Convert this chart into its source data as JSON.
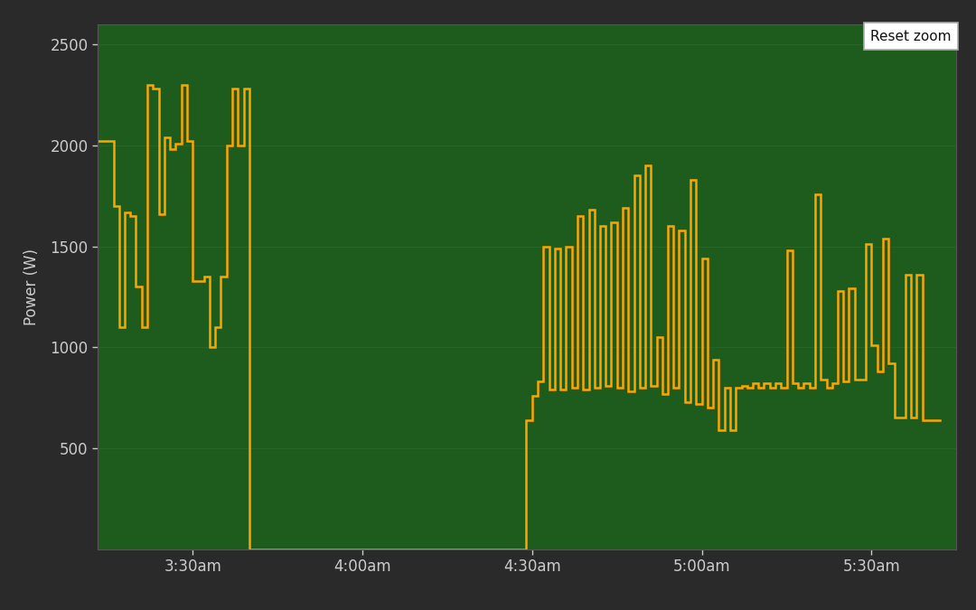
{
  "bg_color": "#2a2a2a",
  "plot_bg_color": "#1e5c1e",
  "line_color": "#FFA500",
  "line_width": 1.8,
  "ylabel": "Power (W)",
  "ylim": [
    0,
    2600
  ],
  "yticks": [
    500,
    1000,
    1500,
    2000,
    2500
  ],
  "grid_color": "#266626",
  "tick_color": "#cccccc",
  "reset_zoom_text": "Reset zoom",
  "xlim": [
    3.22,
    5.75
  ],
  "xtick_positions": [
    3.5,
    4.0,
    4.5,
    5.0,
    5.5
  ],
  "xtick_labels": [
    "3:30am",
    "4:00am",
    "4:30am",
    "5:00am",
    "5:30am"
  ],
  "time_series": [
    [
      3.22,
      2020
    ],
    [
      3.267,
      2020
    ],
    [
      3.267,
      1700
    ],
    [
      3.283,
      1700
    ],
    [
      3.283,
      1100
    ],
    [
      3.3,
      1100
    ],
    [
      3.3,
      1670
    ],
    [
      3.317,
      1670
    ],
    [
      3.317,
      1650
    ],
    [
      3.333,
      1650
    ],
    [
      3.333,
      1300
    ],
    [
      3.35,
      1300
    ],
    [
      3.35,
      1100
    ],
    [
      3.367,
      1100
    ],
    [
      3.367,
      2300
    ],
    [
      3.383,
      2300
    ],
    [
      3.383,
      2280
    ],
    [
      3.4,
      2280
    ],
    [
      3.4,
      1660
    ],
    [
      3.417,
      1660
    ],
    [
      3.417,
      2040
    ],
    [
      3.433,
      2040
    ],
    [
      3.433,
      1980
    ],
    [
      3.45,
      1980
    ],
    [
      3.45,
      2010
    ],
    [
      3.467,
      2010
    ],
    [
      3.467,
      2300
    ],
    [
      3.483,
      2300
    ],
    [
      3.483,
      2020
    ],
    [
      3.5,
      2020
    ],
    [
      3.5,
      1330
    ],
    [
      3.517,
      1330
    ],
    [
      3.517,
      1330
    ],
    [
      3.533,
      1330
    ],
    [
      3.533,
      1350
    ],
    [
      3.55,
      1350
    ],
    [
      3.55,
      1000
    ],
    [
      3.567,
      1000
    ],
    [
      3.567,
      1100
    ],
    [
      3.583,
      1100
    ],
    [
      3.583,
      1350
    ],
    [
      3.6,
      1350
    ],
    [
      3.6,
      2000
    ],
    [
      3.617,
      2000
    ],
    [
      3.617,
      2280
    ],
    [
      3.633,
      2280
    ],
    [
      3.633,
      2000
    ],
    [
      3.65,
      2000
    ],
    [
      3.65,
      2280
    ],
    [
      3.667,
      2280
    ],
    [
      3.667,
      0
    ],
    [
      4.483,
      0
    ],
    [
      4.483,
      640
    ],
    [
      4.5,
      640
    ],
    [
      4.5,
      760
    ],
    [
      4.517,
      760
    ],
    [
      4.517,
      830
    ],
    [
      4.533,
      830
    ],
    [
      4.533,
      1500
    ],
    [
      4.55,
      1500
    ],
    [
      4.55,
      790
    ],
    [
      4.567,
      790
    ],
    [
      4.567,
      1490
    ],
    [
      4.583,
      1490
    ],
    [
      4.583,
      790
    ],
    [
      4.6,
      790
    ],
    [
      4.6,
      1500
    ],
    [
      4.617,
      1500
    ],
    [
      4.617,
      800
    ],
    [
      4.633,
      800
    ],
    [
      4.633,
      1650
    ],
    [
      4.65,
      1650
    ],
    [
      4.65,
      790
    ],
    [
      4.667,
      790
    ],
    [
      4.667,
      1680
    ],
    [
      4.683,
      1680
    ],
    [
      4.683,
      800
    ],
    [
      4.7,
      800
    ],
    [
      4.7,
      1600
    ],
    [
      4.717,
      1600
    ],
    [
      4.717,
      810
    ],
    [
      4.733,
      810
    ],
    [
      4.733,
      1620
    ],
    [
      4.75,
      1620
    ],
    [
      4.75,
      800
    ],
    [
      4.767,
      800
    ],
    [
      4.767,
      1690
    ],
    [
      4.783,
      1690
    ],
    [
      4.783,
      780
    ],
    [
      4.8,
      780
    ],
    [
      4.8,
      1850
    ],
    [
      4.817,
      1850
    ],
    [
      4.817,
      800
    ],
    [
      4.833,
      800
    ],
    [
      4.833,
      1900
    ],
    [
      4.85,
      1900
    ],
    [
      4.85,
      810
    ],
    [
      4.867,
      810
    ],
    [
      4.867,
      1050
    ],
    [
      4.883,
      1050
    ],
    [
      4.883,
      770
    ],
    [
      4.9,
      770
    ],
    [
      4.9,
      1600
    ],
    [
      4.917,
      1600
    ],
    [
      4.917,
      800
    ],
    [
      4.933,
      800
    ],
    [
      4.933,
      1580
    ],
    [
      4.95,
      1580
    ],
    [
      4.95,
      730
    ],
    [
      4.967,
      730
    ],
    [
      4.967,
      1830
    ],
    [
      4.983,
      1830
    ],
    [
      4.983,
      720
    ],
    [
      5.0,
      720
    ],
    [
      5.0,
      1440
    ],
    [
      5.017,
      1440
    ],
    [
      5.017,
      700
    ],
    [
      5.033,
      700
    ],
    [
      5.033,
      940
    ],
    [
      5.05,
      940
    ],
    [
      5.05,
      590
    ],
    [
      5.067,
      590
    ],
    [
      5.067,
      800
    ],
    [
      5.083,
      800
    ],
    [
      5.083,
      590
    ],
    [
      5.1,
      590
    ],
    [
      5.1,
      800
    ],
    [
      5.117,
      800
    ],
    [
      5.117,
      810
    ],
    [
      5.133,
      810
    ],
    [
      5.133,
      800
    ],
    [
      5.15,
      800
    ],
    [
      5.15,
      820
    ],
    [
      5.167,
      820
    ],
    [
      5.167,
      800
    ],
    [
      5.183,
      800
    ],
    [
      5.183,
      820
    ],
    [
      5.2,
      820
    ],
    [
      5.2,
      800
    ],
    [
      5.217,
      800
    ],
    [
      5.217,
      820
    ],
    [
      5.233,
      820
    ],
    [
      5.233,
      800
    ],
    [
      5.25,
      800
    ],
    [
      5.25,
      1480
    ],
    [
      5.267,
      1480
    ],
    [
      5.267,
      820
    ],
    [
      5.283,
      820
    ],
    [
      5.283,
      800
    ],
    [
      5.3,
      800
    ],
    [
      5.3,
      820
    ],
    [
      5.317,
      820
    ],
    [
      5.317,
      800
    ],
    [
      5.333,
      800
    ],
    [
      5.333,
      1760
    ],
    [
      5.35,
      1760
    ],
    [
      5.35,
      840
    ],
    [
      5.367,
      840
    ],
    [
      5.367,
      800
    ],
    [
      5.383,
      800
    ],
    [
      5.383,
      820
    ],
    [
      5.4,
      820
    ],
    [
      5.4,
      1280
    ],
    [
      5.417,
      1280
    ],
    [
      5.417,
      830
    ],
    [
      5.433,
      830
    ],
    [
      5.433,
      1290
    ],
    [
      5.45,
      1290
    ],
    [
      5.45,
      840
    ],
    [
      5.467,
      840
    ],
    [
      5.467,
      840
    ],
    [
      5.483,
      840
    ],
    [
      5.483,
      1510
    ],
    [
      5.5,
      1510
    ],
    [
      5.5,
      1010
    ],
    [
      5.517,
      1010
    ],
    [
      5.517,
      880
    ],
    [
      5.533,
      880
    ],
    [
      5.533,
      1540
    ],
    [
      5.55,
      1540
    ],
    [
      5.55,
      920
    ],
    [
      5.567,
      920
    ],
    [
      5.567,
      650
    ],
    [
      5.583,
      650
    ],
    [
      5.583,
      650
    ],
    [
      5.6,
      650
    ],
    [
      5.6,
      1360
    ],
    [
      5.617,
      1360
    ],
    [
      5.617,
      650
    ],
    [
      5.633,
      650
    ],
    [
      5.633,
      1360
    ],
    [
      5.65,
      1360
    ],
    [
      5.65,
      640
    ],
    [
      5.667,
      640
    ],
    [
      5.667,
      640
    ],
    [
      5.7,
      640
    ],
    [
      5.7,
      640
    ]
  ]
}
